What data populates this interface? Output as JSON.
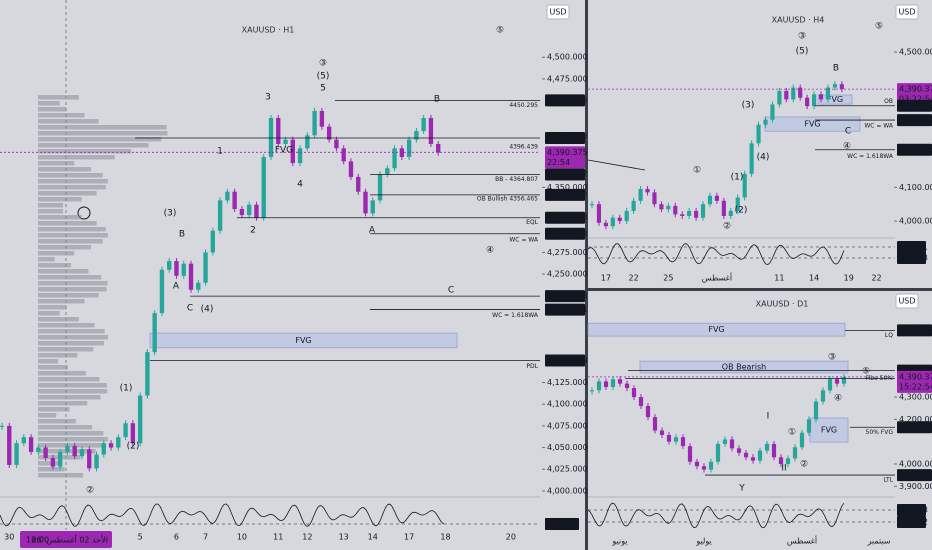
{
  "chart_data": [
    {
      "type": "candlestick",
      "title": "XAUUSD · H1",
      "currency": "USD",
      "up_color": "#26a69a",
      "down_color": "#9c27b0",
      "categories": [
        null,
        "30",
        null,
        null,
        null,
        null,
        null,
        null,
        null,
        null,
        null,
        null,
        null,
        null,
        null,
        null,
        null,
        null,
        null,
        "5",
        null,
        null,
        null,
        null,
        "6",
        null,
        null,
        null,
        "7",
        null,
        null,
        null,
        null,
        "10",
        null,
        null,
        null,
        null,
        "11",
        null,
        null,
        null,
        "12",
        null,
        null,
        null,
        null,
        "13",
        null,
        null,
        null,
        "14",
        null,
        null,
        null,
        null,
        "17",
        null,
        null,
        null,
        null,
        "18",
        null,
        null,
        null,
        null,
        null,
        null,
        null,
        null,
        "20"
      ],
      "values": [
        4075,
        4030,
        4055,
        4062,
        4045,
        4050,
        4038,
        4028,
        4045,
        4052,
        4040,
        4048,
        4026,
        4042,
        4055,
        4050,
        4062,
        4078,
        4055,
        4110,
        4160,
        4205,
        4255,
        4265,
        4248,
        4262,
        4232,
        4240,
        4275,
        4300,
        4335,
        4345,
        4325,
        4318,
        4330,
        4315,
        4385,
        4430,
        4400,
        4405,
        4378,
        4395,
        4410,
        4438,
        4420,
        4405,
        4395,
        4380,
        4362,
        4345,
        4320,
        4335,
        4365,
        4372,
        4395,
        4385,
        4405,
        4415,
        4430,
        4400,
        4390,
        null,
        null,
        null,
        null,
        null,
        null,
        null,
        null,
        null,
        null
      ],
      "ylim": [
        3993,
        4566
      ],
      "yticks": [
        {
          "value": 4000,
          "label": "4,000.000"
        },
        {
          "value": 4025,
          "label": "4,025.000"
        },
        {
          "value": 4050,
          "label": "4,050.000"
        },
        {
          "value": 4075,
          "label": "4,075.000"
        },
        {
          "value": 4100,
          "label": "4,100.000"
        },
        {
          "value": 4125,
          "label": "4,125.000"
        },
        {
          "value": 4250,
          "label": "4,250.000"
        },
        {
          "value": 4275,
          "label": "4,275.000"
        },
        {
          "value": 4350,
          "label": "4,350.000"
        },
        {
          "value": 4475,
          "label": "4,475.000"
        },
        {
          "value": 4500,
          "label": "4,500.000"
        }
      ],
      "levels": [
        {
          "value": 4450.295,
          "label": "4,450.295",
          "note": "4450.295",
          "color": "#131722"
        },
        {
          "value": 4406.917,
          "label": "4,406.917",
          "color": "#131722"
        },
        {
          "value": 4396.439,
          "note": "4396.439",
          "color": "#131722"
        },
        {
          "value": 4390.375,
          "label": "4,390.375",
          "countdown": "22:54",
          "color": "#9c27b0"
        },
        {
          "value": 4364.807,
          "label": "4,364.807",
          "note": "BB - 4364.807",
          "color": "#131722"
        },
        {
          "value": 4341.322,
          "label": "4,341.322",
          "note": "OB Bullish 4356.465",
          "color": "#131722"
        },
        {
          "value": 4314.958,
          "label": "4,314.958",
          "note": "EQL",
          "color": "#131722"
        },
        {
          "value": 4296.473,
          "label": "4,296.473",
          "note": "WC = WA",
          "color": "#131722",
          "note_color": "#9c27b0"
        },
        {
          "value": 4224.618,
          "label": "4,224.618",
          "color": "#131722"
        },
        {
          "value": 4209.091,
          "label": "4,209.091",
          "note": "WC = 1.618WA",
          "color": "#131722",
          "note_color": "#9c27b0"
        },
        {
          "value": 4150.409,
          "label": "4,150.409",
          "note": "PDL",
          "color": "#131722"
        }
      ],
      "zones": [
        {
          "label": "FVG",
          "range": [
            4165,
            4182
          ],
          "color": "#b3bde8"
        }
      ],
      "annotations": [
        "⑤",
        "③",
        "(5)",
        "5",
        "3",
        "B",
        "1",
        "FVG",
        "4",
        "(3)",
        "B",
        "2",
        "A",
        "A",
        "C",
        "(4)",
        "④",
        "C",
        "(1)",
        "(2)",
        "②"
      ],
      "oscillator_labels": [
        "1.673"
      ],
      "crosshair_date": "الأحد 02 أغسطس '26",
      "crosshair_time": "18:00"
    },
    {
      "type": "candlestick",
      "title": "XAUUSD · H4",
      "currency": "USD",
      "up_color": "#26a69a",
      "down_color": "#9c27b0",
      "categories": [
        null,
        null,
        "17",
        null,
        null,
        null,
        "22",
        null,
        null,
        null,
        null,
        "25",
        null,
        null,
        null,
        null,
        null,
        null,
        "أغسطس",
        null,
        null,
        null,
        null,
        null,
        null,
        null,
        null,
        "11",
        null,
        null,
        null,
        null,
        "14",
        null,
        null,
        null,
        null,
        "19",
        null,
        null,
        null,
        "22"
      ],
      "values": [
        4050,
        3995,
        3985,
        4010,
        4000,
        4030,
        4060,
        4095,
        4085,
        4050,
        4035,
        4045,
        4020,
        4015,
        4030,
        4010,
        4050,
        4075,
        4060,
        4015,
        4030,
        4070,
        4140,
        4230,
        4285,
        4300,
        4345,
        4385,
        4360,
        4395,
        4365,
        4340,
        4375,
        4360,
        4395,
        4405,
        4390,
        null,
        null,
        null,
        null,
        null
      ],
      "ylim": [
        3950,
        4654
      ],
      "yticks": [
        {
          "value": 4000,
          "label": "4,000.000"
        },
        {
          "value": 4100,
          "label": "4,100.000"
        },
        {
          "value": 4500,
          "label": "4,500.000"
        }
      ],
      "levels": [
        {
          "value": 4390.375,
          "label": "4,390.375",
          "countdown": "03:22:54",
          "color": "#9c27b0"
        },
        {
          "value": 4341.288,
          "label": "4,341.288",
          "note": "OB",
          "color": "#131722"
        },
        {
          "value": 4298.823,
          "label": "4,298.823",
          "note": "WC = WA",
          "color": "#131722"
        },
        {
          "value": 4211.086,
          "label": "4,211.086",
          "note": "WC = 1.618WA",
          "color": "#131722"
        }
      ],
      "zones": [
        {
          "label": "FVG",
          "range": [
            4346,
            4373
          ],
          "color": "#b3bde8"
        },
        {
          "label": "FVG",
          "range": [
            4266,
            4308
          ],
          "color": "#b3bde8"
        }
      ],
      "annotations": [
        "⑤",
        "③",
        "(5)",
        "B",
        "(3)",
        "C",
        "④",
        "(4)",
        "①",
        "(1)",
        "(2)",
        "②"
      ],
      "oscillator_labels": [
        "60.401",
        "33.333"
      ]
    },
    {
      "type": "candlestick",
      "title": "XAUUSD · D1",
      "currency": "USD",
      "up_color": "#26a69a",
      "down_color": "#9c27b0",
      "categories": [
        null,
        null,
        null,
        null,
        "يونيو",
        null,
        null,
        null,
        null,
        null,
        null,
        null,
        null,
        null,
        null,
        null,
        "يوليو",
        null,
        null,
        null,
        null,
        null,
        null,
        null,
        null,
        null,
        null,
        null,
        null,
        null,
        "أغسطس",
        null,
        null,
        null,
        null,
        null,
        null,
        null,
        null,
        null,
        null,
        "سبتمبر"
      ],
      "values": [
        4330,
        4370,
        4345,
        4380,
        4360,
        4340,
        4300,
        4260,
        4210,
        4150,
        4130,
        4100,
        4120,
        4080,
        4010,
        3990,
        3975,
        4010,
        4090,
        4110,
        4070,
        4050,
        4030,
        4015,
        4060,
        4090,
        4030,
        4000,
        4025,
        4075,
        4140,
        4200,
        4280,
        4330,
        4380,
        4360,
        4390,
        null,
        null,
        null,
        null,
        null
      ],
      "ylim": [
        3861,
        4690
      ],
      "yticks": [
        {
          "value": 3900,
          "label": "3,900.000"
        },
        {
          "value": 4000,
          "label": "4,000.000"
        },
        {
          "value": 4200,
          "label": "4,200.000"
        },
        {
          "value": 4300,
          "label": "4,300.000"
        }
      ],
      "levels": [
        {
          "value": 4598.746,
          "label": "4,598.746",
          "note": "LQ",
          "color": "#131722"
        },
        {
          "value": 4418.364,
          "label": "4,418.364",
          "color": "#131722"
        },
        {
          "value": 4390.375,
          "label": "4,390.375",
          "countdown": "15:22:54",
          "color": "#9c27b0"
        },
        {
          "value": 4383,
          "note": "Fibo 50%",
          "color": "#131722"
        },
        {
          "value": 4164.465,
          "label": "4,164.465",
          "note": "50% FVG",
          "color": "#131722"
        },
        {
          "value": 3950.291,
          "label": "3,950.291",
          "note": "LTL",
          "color": "#131722"
        }
      ],
      "zones": [
        {
          "label": "FVG",
          "range": [
            4573,
            4631
          ],
          "color": "#b3bde8"
        },
        {
          "label": "OB Bearish",
          "range": [
            4408,
            4461
          ],
          "color": "#b3bde8"
        },
        {
          "label": "FVG",
          "range": [
            4098,
            4206
          ],
          "color": "#b3bde8"
        }
      ],
      "annotations": [
        "③",
        "⑤",
        "④",
        "I",
        "①",
        "②",
        "II",
        "Y"
      ],
      "oscillator_labels": [
        "26.753",
        "23.882"
      ]
    }
  ]
}
